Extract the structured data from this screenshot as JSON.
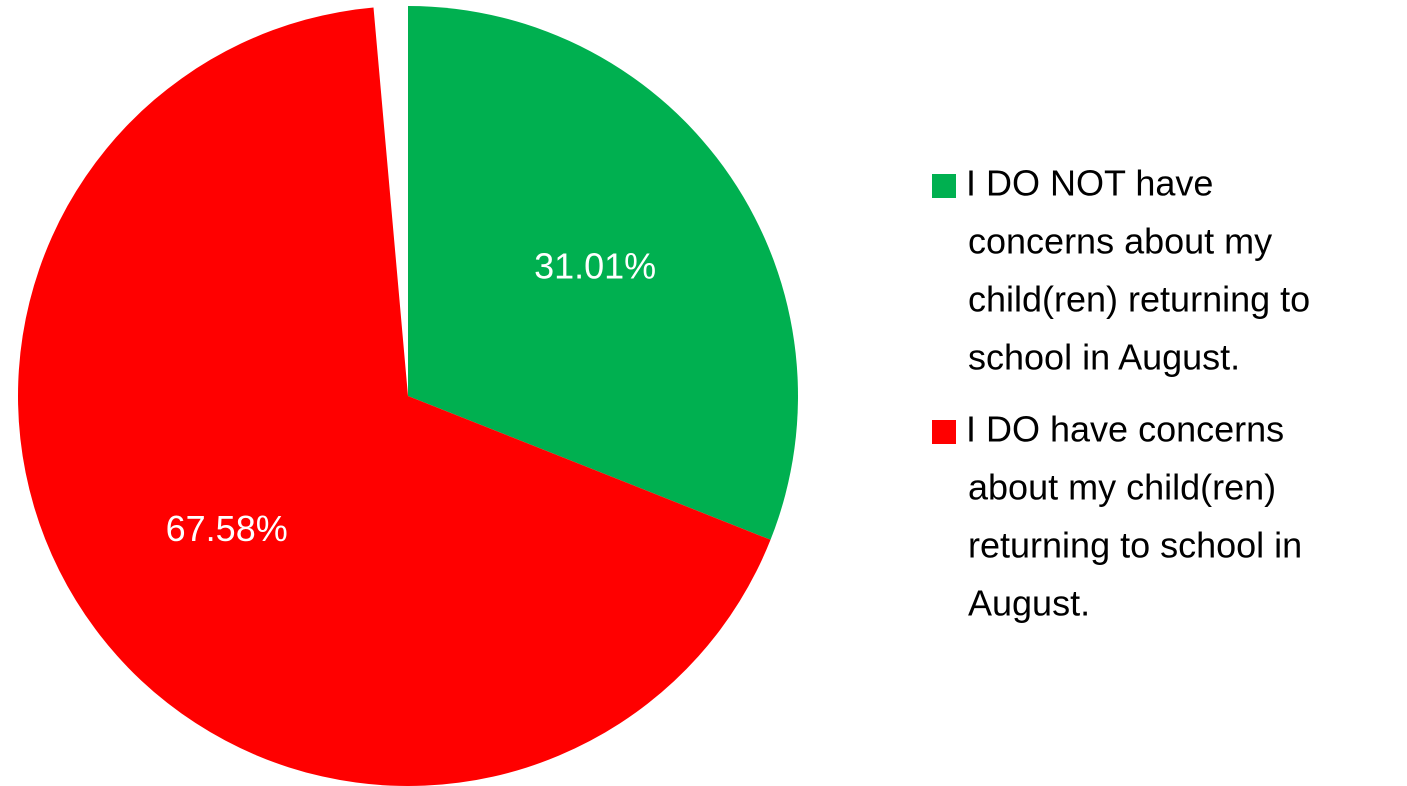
{
  "chart_data": {
    "type": "pie",
    "title": "",
    "series": [
      {
        "name": "I DO NOT have concerns about my child(ren) returning to school in August.",
        "label_lines": [
          "I DO NOT have",
          "concerns about my",
          "child(ren) returning to",
          "school in August."
        ],
        "value": 31.01,
        "data_label": "31.01%",
        "color": "#00b050"
      },
      {
        "name": "I DO have concerns about my child(ren) returning to school in August.",
        "label_lines": [
          "I DO have concerns",
          "about my child(ren)",
          "returning to school in",
          "August."
        ],
        "value": 67.58,
        "data_label": "67.58%",
        "color": "#ff0000"
      }
    ],
    "start_angle": "12 o'clock",
    "direction": "clockwise",
    "legend_position": "right"
  }
}
